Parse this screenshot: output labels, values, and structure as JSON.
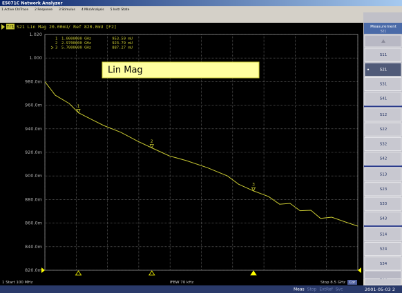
{
  "window": {
    "title": "E5071C Network Analyzer",
    "menu": [
      "1 Active Ch/Trace",
      "2 Response",
      "3 Stimulus",
      "4 Mkr/Analysis",
      "5 Instr State"
    ]
  },
  "chart_data": {
    "type": "line",
    "trace_tag": "Tr1",
    "trace_header": "S21 Lin Mag 20.00mU/ Ref 820.0mU [F2]",
    "annotation": "Lin Mag",
    "start_label": "1 Start 100 MHz",
    "ifbw_label": "IFBW 70 kHz",
    "stop_label": "Stop 8.5 GHz",
    "cor_label": "Cor",
    "xlim": [
      0.1,
      8.5
    ],
    "ylim": [
      0.82,
      1.02
    ],
    "yticks": [
      {
        "value": 1.02,
        "label": "1.020"
      },
      {
        "value": 1.0,
        "label": "1.000"
      },
      {
        "value": 0.98,
        "label": "980.0m"
      },
      {
        "value": 0.96,
        "label": "960.0m"
      },
      {
        "value": 0.94,
        "label": "940.0m"
      },
      {
        "value": 0.92,
        "label": "920.0m"
      },
      {
        "value": 0.9,
        "label": "900.0m"
      },
      {
        "value": 0.88,
        "label": "880.0m"
      },
      {
        "value": 0.86,
        "label": "860.0m"
      },
      {
        "value": 0.84,
        "label": "840.0m"
      },
      {
        "value": 0.82,
        "label": "820.0m"
      }
    ],
    "grid": true,
    "series": [
      {
        "name": "S21",
        "color": "#c8c832",
        "x": [
          0.1,
          0.378,
          0.749,
          1.0,
          1.305,
          1.676,
          2.14,
          2.6,
          2.97,
          3.44,
          3.9,
          4.46,
          5.0,
          5.3,
          5.7,
          6.1,
          6.4,
          6.68,
          6.95,
          7.24,
          7.5,
          7.8,
          8.16,
          8.5
        ],
        "values": [
          0.98,
          0.9685,
          0.9615,
          0.9536,
          0.9487,
          0.9428,
          0.937,
          0.9293,
          0.9238,
          0.917,
          0.913,
          0.907,
          0.9,
          0.893,
          0.8873,
          0.8826,
          0.876,
          0.8767,
          0.8705,
          0.8709,
          0.864,
          0.865,
          0.861,
          0.8574
        ]
      }
    ],
    "markers": [
      {
        "label": "1",
        "x": 1.0,
        "x_label": "1.0000000 GHz",
        "value": 0.95359,
        "value_label": "953.59 mU"
      },
      {
        "label": "2",
        "x": 2.97,
        "x_label": "2.9700000 GHz",
        "value": 0.92379,
        "value_label": "923.79 mU"
      },
      {
        "label": "3",
        "x": 5.7,
        "x_label": "5.7000000 GHz",
        "value": 0.88727,
        "value_label": "887.27 mU"
      }
    ]
  },
  "softkeys": {
    "title": "Measurement",
    "current": "S21",
    "items": [
      "S11",
      "S21",
      "S31",
      "S41",
      "S12",
      "S22",
      "S32",
      "S42",
      "S13",
      "S23",
      "S33",
      "S43",
      "S14",
      "S24",
      "S34",
      "S44"
    ]
  },
  "status_bar": {
    "items": [
      "Meas",
      "Stop",
      "ExtRef",
      "Svc"
    ],
    "clock": "2001-05-03 2"
  }
}
